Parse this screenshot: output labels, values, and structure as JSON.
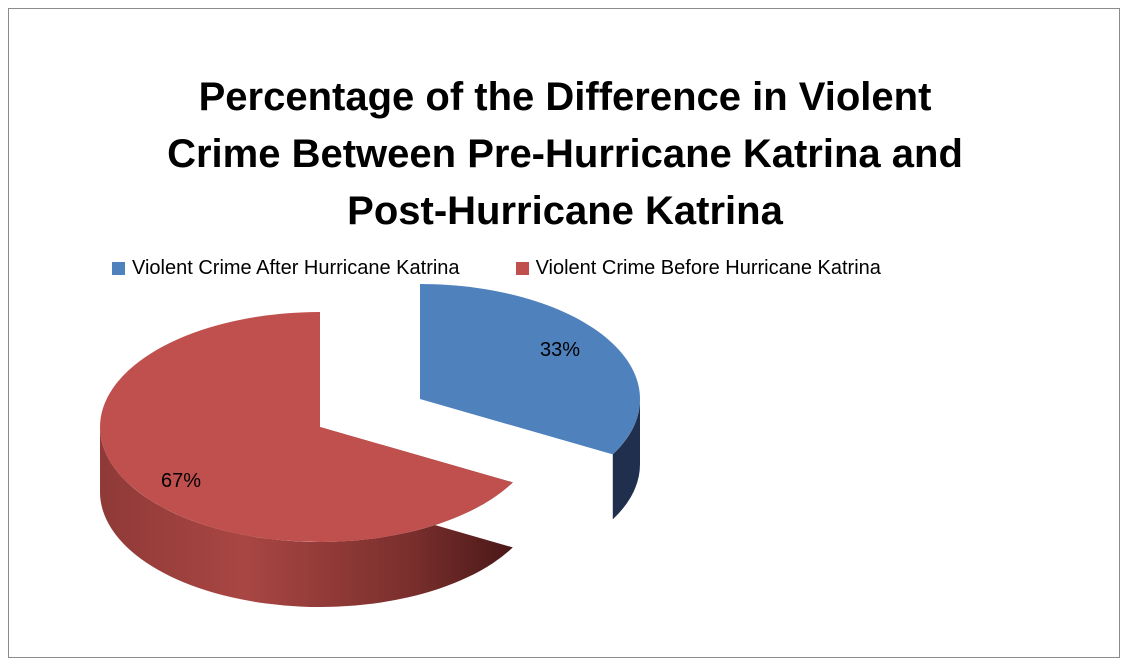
{
  "chart_data": {
    "type": "pie",
    "title_lines": [
      "Percentage of the Difference in Violent",
      "Crime Between Pre-Hurricane Katrina and",
      "Post-Hurricane Katrina"
    ],
    "legend_position": "top",
    "style": "3d-exploded",
    "series": [
      {
        "name": "Violent Crime After Hurricane Katrina",
        "value": 33,
        "label": "33%",
        "color": "#4f81bd",
        "side_color": "#1f2f4d"
      },
      {
        "name": "Violent Crime Before Hurricane Katrina",
        "value": 67,
        "label": "67%",
        "color": "#c0504d",
        "side_color": "#5c1f1e"
      }
    ]
  }
}
